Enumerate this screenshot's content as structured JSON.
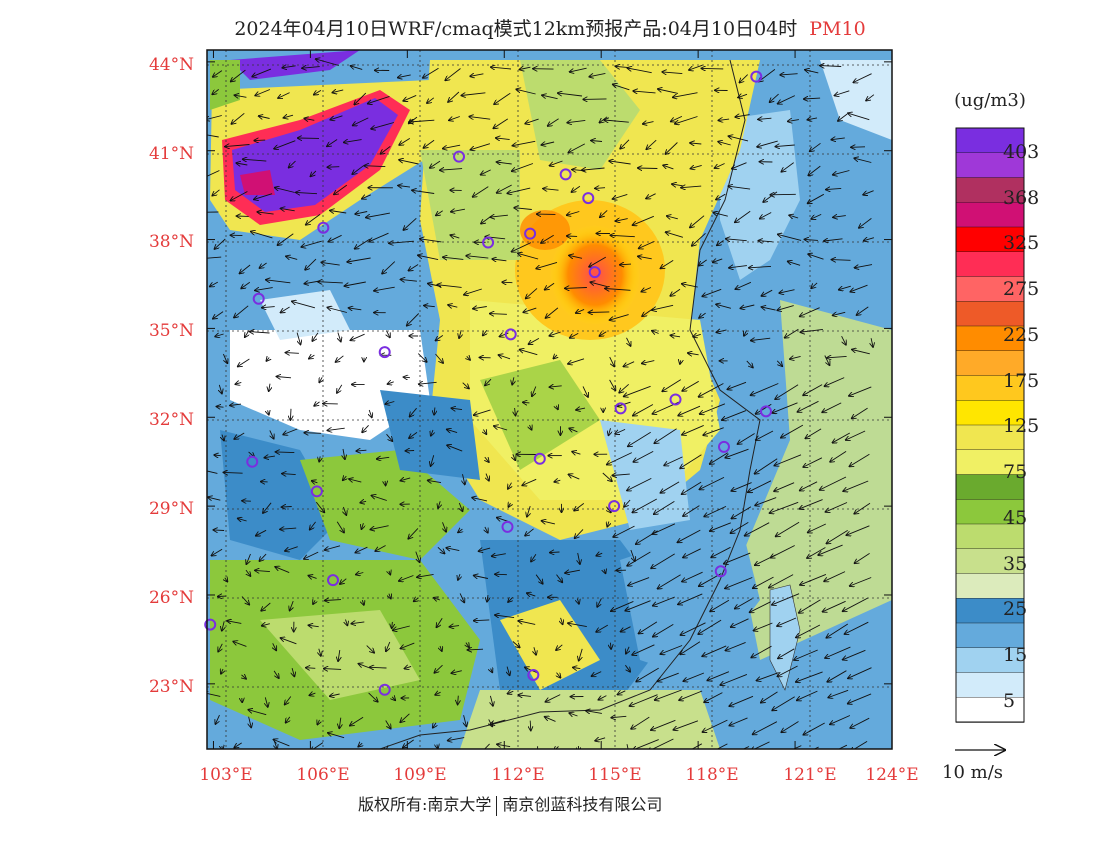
{
  "header": {
    "title": "2024年04月10日WRF/cmaq模式12km预报产品:04月10日04时",
    "pollutant": "PM10"
  },
  "axes": {
    "lat_labels": [
      "44°N",
      "41°N",
      "38°N",
      "35°N",
      "32°N",
      "29°N",
      "26°N",
      "23°N"
    ],
    "lon_labels": [
      "103°E",
      "106°E",
      "109°E",
      "112°E",
      "115°E",
      "118°E",
      "121°E",
      "124°E"
    ]
  },
  "legend": {
    "unit": "(ug/m3)",
    "levels": [
      "403",
      "368",
      "325",
      "275",
      "225",
      "175",
      "125",
      "75",
      "45",
      "35",
      "25",
      "15",
      "5"
    ],
    "colors": [
      "#7a2ee0",
      "#9f38d8",
      "#b03060",
      "#d01074",
      "#ff0000",
      "#ff2d55",
      "#ff6464",
      "#ee5a28",
      "#ff8c00",
      "#ffaa28",
      "#ffc81e",
      "#ffe600",
      "#f0e650",
      "#f0f064",
      "#6aaa2e",
      "#8cc83c",
      "#bcdc6e",
      "#c8e08c",
      "#dcebbc",
      "#3c8cc8",
      "#64aadc",
      "#a0d2f0",
      "#d2ebfa",
      "#ffffff"
    ],
    "vector_label": "10 m/s"
  },
  "credits": {
    "left": "版权所有:南京大学",
    "right": "南京创蓝科技有限公司"
  },
  "map": {
    "lon_range": [
      102.8,
      124
    ],
    "lat_range": [
      20.8,
      44.4
    ],
    "stations": [
      {
        "lon": 119.8,
        "lat": 43.5
      },
      {
        "lon": 110.6,
        "lat": 40.8
      },
      {
        "lon": 113.9,
        "lat": 40.2
      },
      {
        "lon": 114.6,
        "lat": 39.4
      },
      {
        "lon": 106.4,
        "lat": 38.4
      },
      {
        "lon": 111.5,
        "lat": 37.9
      },
      {
        "lon": 112.8,
        "lat": 38.2
      },
      {
        "lon": 114.8,
        "lat": 36.9
      },
      {
        "lon": 104.4,
        "lat": 36.0
      },
      {
        "lon": 112.2,
        "lat": 34.8
      },
      {
        "lon": 108.3,
        "lat": 34.2
      },
      {
        "lon": 117.3,
        "lat": 32.6
      },
      {
        "lon": 115.6,
        "lat": 32.3
      },
      {
        "lon": 120.1,
        "lat": 32.2
      },
      {
        "lon": 118.8,
        "lat": 31.0
      },
      {
        "lon": 104.2,
        "lat": 30.5
      },
      {
        "lon": 113.1,
        "lat": 30.6
      },
      {
        "lon": 106.2,
        "lat": 29.5
      },
      {
        "lon": 115.4,
        "lat": 29.0
      },
      {
        "lon": 112.1,
        "lat": 28.3
      },
      {
        "lon": 118.7,
        "lat": 26.8
      },
      {
        "lon": 106.7,
        "lat": 26.5
      },
      {
        "lon": 102.9,
        "lat": 25.0
      },
      {
        "lon": 108.3,
        "lat": 22.8
      },
      {
        "lon": 112.9,
        "lat": 23.3
      }
    ]
  }
}
